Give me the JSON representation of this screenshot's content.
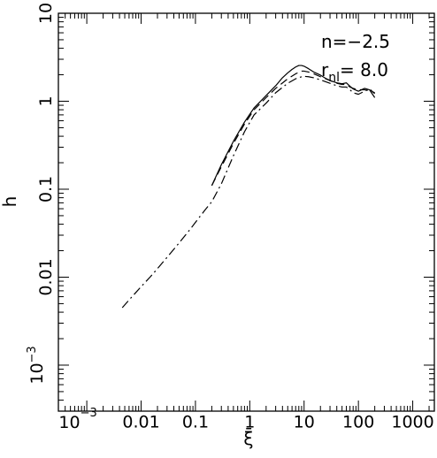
{
  "chart_data": {
    "type": "line",
    "title": "",
    "xlabel": "ξ̄",
    "ylabel": "h",
    "x_scale": "log",
    "y_scale": "log",
    "xlim": [
      0.0003,
      2500
    ],
    "ylim": [
      0.0003,
      10
    ],
    "grid": false,
    "x_ticks": [
      {
        "value": 0.001,
        "base": "10",
        "exp": "−3"
      },
      {
        "value": 0.01,
        "label": "0.01"
      },
      {
        "value": 0.1,
        "label": "0.1"
      },
      {
        "value": 1,
        "label": "1"
      },
      {
        "value": 10,
        "label": "10"
      },
      {
        "value": 100,
        "label": "100"
      },
      {
        "value": 1000,
        "label": "1000"
      }
    ],
    "y_ticks": [
      {
        "value": 0.001,
        "base": "10",
        "exp": "−3"
      },
      {
        "value": 0.01,
        "label": "0.01"
      },
      {
        "value": 0.1,
        "label": "0.1"
      },
      {
        "value": 1,
        "label": "1"
      },
      {
        "value": 10,
        "label": "10"
      }
    ],
    "annotations": {
      "n_label": "n=−2.5",
      "r_main": "r",
      "r_sub": "nl",
      "r_value": "=  8.0"
    },
    "series": [
      {
        "style": "solid",
        "x": [
          0.2,
          0.3,
          0.5,
          0.8,
          1.2,
          2,
          3,
          4,
          5,
          6,
          7,
          8,
          9,
          10,
          12,
          15,
          20,
          25,
          30,
          40,
          50,
          60,
          70,
          80,
          100,
          130,
          160,
          200
        ],
        "y": [
          0.11,
          0.19,
          0.35,
          0.58,
          0.84,
          1.16,
          1.5,
          1.85,
          2.1,
          2.3,
          2.45,
          2.55,
          2.55,
          2.5,
          2.35,
          2.15,
          1.98,
          1.82,
          1.72,
          1.62,
          1.58,
          1.62,
          1.48,
          1.38,
          1.3,
          1.4,
          1.35,
          1.1
        ]
      },
      {
        "style": "dashed",
        "x": [
          0.2,
          0.3,
          0.5,
          0.8,
          1.2,
          2,
          3,
          5,
          7,
          9,
          10,
          12,
          15,
          20,
          30,
          40,
          50,
          60,
          70,
          80,
          100,
          130,
          160,
          200
        ],
        "y": [
          0.11,
          0.18,
          0.33,
          0.55,
          0.8,
          1.1,
          1.4,
          1.8,
          2.05,
          2.2,
          2.2,
          2.15,
          2.05,
          1.9,
          1.72,
          1.6,
          1.55,
          1.55,
          1.45,
          1.4,
          1.35,
          1.35,
          1.32,
          1.25
        ]
      },
      {
        "style": "dashdot",
        "x": [
          0.0045,
          0.006,
          0.008,
          0.01,
          0.015,
          0.02,
          0.03,
          0.05,
          0.08,
          0.1,
          0.15,
          0.2,
          0.3,
          0.5,
          0.8,
          1.2,
          2,
          3,
          5,
          7,
          9,
          10,
          12,
          15,
          20,
          30,
          40,
          50,
          60,
          70,
          80,
          100,
          130,
          160,
          200
        ],
        "y": [
          0.0045,
          0.0055,
          0.0067,
          0.0078,
          0.0102,
          0.0125,
          0.0168,
          0.0245,
          0.035,
          0.042,
          0.058,
          0.072,
          0.115,
          0.24,
          0.45,
          0.7,
          0.95,
          1.25,
          1.6,
          1.8,
          1.9,
          1.92,
          1.9,
          1.85,
          1.75,
          1.6,
          1.5,
          1.45,
          1.45,
          1.35,
          1.25,
          1.2,
          1.3,
          1.38,
          1.22
        ]
      }
    ]
  }
}
